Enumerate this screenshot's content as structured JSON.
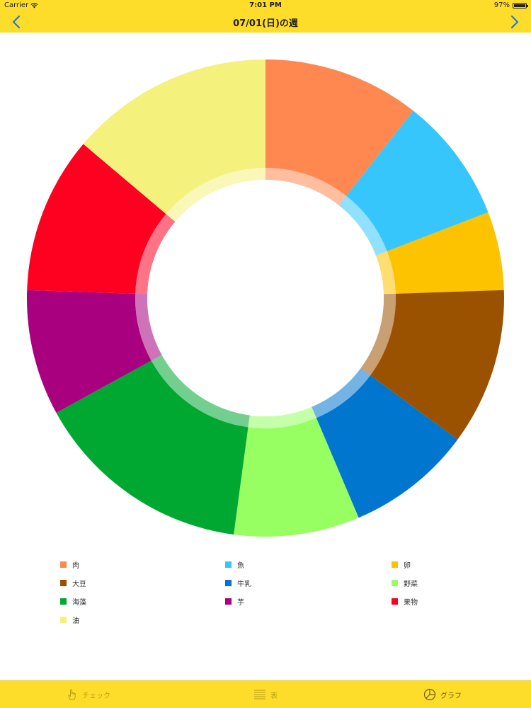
{
  "status": {
    "carrier": "Carrier",
    "time": "7:01 PM",
    "battery": "97%",
    "battery_level": 0.97
  },
  "nav": {
    "title": "07/01(日)の週",
    "back_icon": "chevron-left-icon",
    "forward_icon": "chevron-right-icon"
  },
  "chart_data": {
    "type": "pie",
    "donut": true,
    "start": "12 o'clock",
    "direction": "clockwise",
    "categories": [
      "肉",
      "魚",
      "卵",
      "大豆",
      "牛乳",
      "野菜",
      "海藻",
      "芋",
      "果物",
      "油"
    ],
    "values": [
      10,
      8,
      5,
      10,
      8,
      8,
      14,
      8,
      10,
      13
    ],
    "colors": [
      "#FF8851",
      "#37C6FB",
      "#FDC200",
      "#9A5200",
      "#0076CF",
      "#97FF62",
      "#00A832",
      "#A8007F",
      "#FE0020",
      "#F5F17D"
    ],
    "legend_position": "bottom"
  },
  "legend": {
    "items": [
      {
        "label": "肉",
        "color": "#FF8851"
      },
      {
        "label": "魚",
        "color": "#37C6FB"
      },
      {
        "label": "卵",
        "color": "#FDC200"
      },
      {
        "label": "大豆",
        "color": "#9A5200"
      },
      {
        "label": "牛乳",
        "color": "#0076CF"
      },
      {
        "label": "野菜",
        "color": "#97FF62"
      },
      {
        "label": "海藻",
        "color": "#00A832"
      },
      {
        "label": "芋",
        "color": "#A8007F"
      },
      {
        "label": "果物",
        "color": "#FE0020"
      },
      {
        "label": "油",
        "color": "#F5F17D"
      }
    ]
  },
  "tabs": [
    {
      "label": "チェック",
      "icon": "hand-pointer-icon",
      "active": false
    },
    {
      "label": "表",
      "icon": "list-lines-icon",
      "active": false
    },
    {
      "label": "グラフ",
      "icon": "pie-chart-icon",
      "active": true
    }
  ],
  "colors": {
    "bar": "#FEDC2A",
    "tint": "#1A7FD6"
  }
}
